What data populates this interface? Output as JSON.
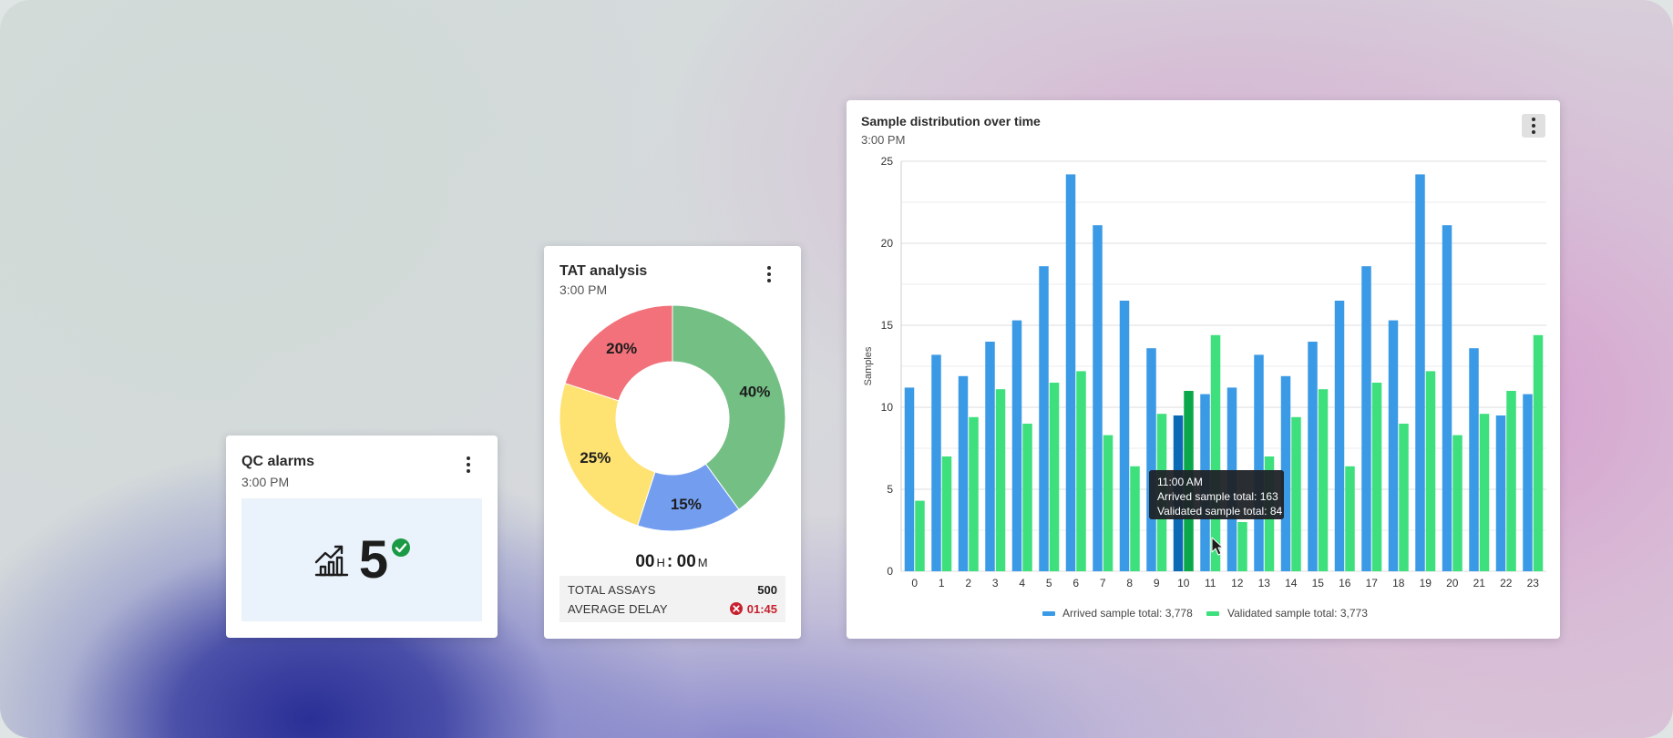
{
  "colors": {
    "arrived": "#3b9ae6",
    "validated": "#3de07c",
    "arrived_highlight": "#0a6ab5",
    "validated_highlight": "#0aa84a",
    "donut_green": "#73bf84",
    "donut_blue": "#739ef0",
    "donut_yellow": "#fee272",
    "donut_red": "#f2717a",
    "error_red": "#c7212e",
    "success_green": "#1b9a46"
  },
  "qc_alarms": {
    "title": "QC alarms",
    "time": "3:00 PM",
    "value": "5",
    "icons": [
      "trend-chart-icon",
      "check-circle-icon",
      "more-vert-icon"
    ]
  },
  "tat_analysis": {
    "title": "TAT analysis",
    "time": "3:00 PM",
    "timer": {
      "hours": "00",
      "hours_unit": "H",
      "separator": ":",
      "minutes": "00",
      "minutes_unit": "M"
    },
    "rows": [
      {
        "label": "TOTAL ASSAYS",
        "value": "500"
      },
      {
        "label": "AVERAGE DELAY",
        "value": "01:45"
      }
    ]
  },
  "sample_distribution": {
    "title": "Sample distribution over time",
    "time": "3:00 PM",
    "tooltip": {
      "time": "11:00 AM",
      "line1": "Arrived sample total: 163",
      "line2": "Validated sample total: 84"
    },
    "legend": [
      {
        "label": "Arrived sample total: 3,778"
      },
      {
        "label": "Validated sample total: 3,773"
      }
    ]
  },
  "chart_data": [
    {
      "type": "pie",
      "variant": "donut",
      "labels": [
        "40%",
        "15%",
        "25%",
        "20%"
      ],
      "values": [
        40,
        15,
        25,
        20
      ],
      "colors": [
        "#73bf84",
        "#739ef0",
        "#fee272",
        "#f2717a"
      ]
    },
    {
      "type": "bar",
      "title": "Sample distribution over time",
      "ylabel": "Samples",
      "xlabel": "",
      "ylim": [
        0,
        25
      ],
      "yticks": [
        0,
        5,
        10,
        15,
        20,
        25
      ],
      "grid": true,
      "legend_position": "bottom",
      "categories": [
        "0",
        "1",
        "2",
        "3",
        "4",
        "5",
        "6",
        "7",
        "8",
        "9",
        "10",
        "11",
        "12",
        "13",
        "14",
        "15",
        "16",
        "17",
        "18",
        "19",
        "20",
        "21",
        "22",
        "23"
      ],
      "highlighted_category": "10",
      "series": [
        {
          "name": "Arrived sample total: 3,778",
          "values": [
            11.2,
            13.2,
            11.9,
            14.0,
            15.3,
            18.6,
            24.2,
            21.1,
            16.5,
            13.6,
            9.5,
            10.8,
            11.2,
            13.2,
            11.9,
            14.0,
            16.5,
            18.6,
            15.3,
            24.2,
            21.1,
            13.6,
            9.5,
            10.8
          ]
        },
        {
          "name": "Validated sample total: 3,773",
          "values": [
            4.3,
            7.0,
            9.4,
            11.1,
            9.0,
            11.5,
            12.2,
            8.3,
            6.4,
            9.6,
            11.0,
            14.4,
            3.0,
            7.0,
            9.4,
            11.1,
            6.4,
            11.5,
            9.0,
            12.2,
            8.3,
            9.6,
            11.0,
            14.4
          ]
        }
      ]
    }
  ]
}
